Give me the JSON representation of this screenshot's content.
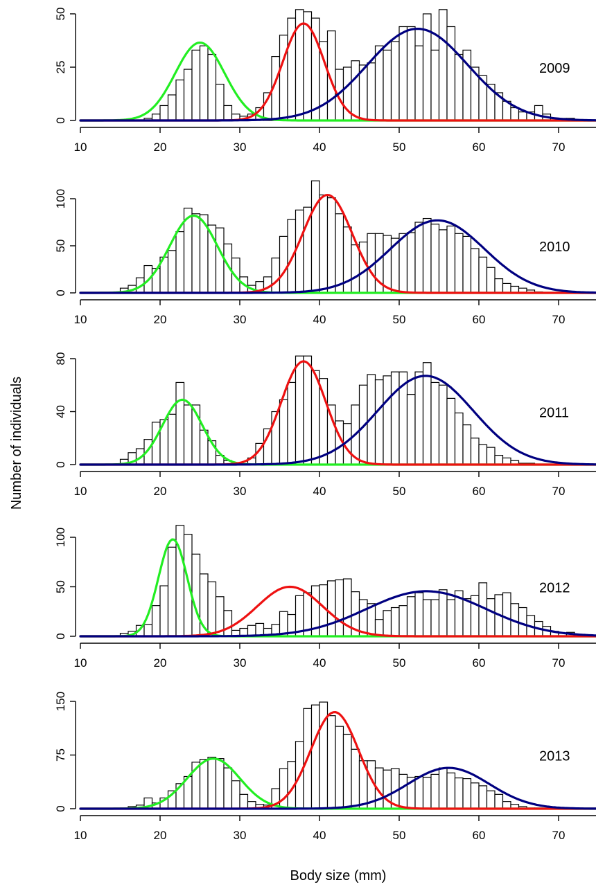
{
  "chart_data": {
    "type": "bar",
    "xlabel": "Body size (mm)",
    "ylabel": "Number of individuals",
    "x_ticks": [
      10,
      20,
      30,
      40,
      50,
      60,
      70
    ],
    "xlim": [
      10,
      75
    ],
    "bin_width": 1,
    "bins_start": 15,
    "colors": {
      "cohort1": "#22ee22",
      "cohort2": "#ee1111",
      "cohort3": "#000080"
    },
    "panels": [
      {
        "label": "2009",
        "ylim": [
          0,
          50
        ],
        "y_ticks": [
          "0",
          "25",
          "50"
        ],
        "counts": [
          0,
          0,
          0,
          1,
          3,
          7,
          12,
          19,
          24,
          33,
          35,
          31,
          17,
          7,
          3,
          2,
          3,
          6,
          13,
          30,
          40,
          48,
          52,
          51,
          48,
          37,
          42,
          24,
          25,
          28,
          26,
          27,
          35,
          33,
          37,
          44,
          44,
          35,
          50,
          33,
          52,
          44,
          31,
          33,
          25,
          21,
          17,
          13,
          9,
          6,
          4,
          4,
          7,
          3,
          1,
          1,
          1,
          0,
          0,
          0
        ],
        "curves": [
          [
            25.0,
            3.1,
            36.5
          ],
          [
            38.0,
            2.6,
            45.5
          ],
          [
            52.3,
            6.3,
            43.0
          ]
        ]
      },
      {
        "label": "2010",
        "ylim": [
          0,
          100
        ],
        "y_ticks": [
          "0",
          "50",
          "100"
        ],
        "counts": [
          5,
          8,
          16,
          29,
          26,
          38,
          45,
          65,
          90,
          84,
          83,
          72,
          69,
          52,
          37,
          17,
          8,
          12,
          17,
          37,
          60,
          78,
          88,
          91,
          119,
          104,
          101,
          84,
          70,
          51,
          54,
          63,
          63,
          61,
          58,
          63,
          64,
          75,
          79,
          73,
          67,
          71,
          63,
          60,
          47,
          38,
          27,
          15,
          10,
          7,
          5,
          3,
          1,
          0,
          0,
          0,
          0,
          0,
          0,
          0
        ],
        "curves": [
          [
            24.2,
            3.0,
            82.0
          ],
          [
            41.0,
            3.1,
            104.0
          ],
          [
            54.8,
            5.9,
            77.0
          ]
        ]
      },
      {
        "label": "2011",
        "ylim": [
          0,
          80
        ],
        "y_ticks": [
          "0",
          "40",
          "80"
        ],
        "counts": [
          4,
          9,
          12,
          19,
          32,
          34,
          38,
          62,
          45,
          45,
          26,
          18,
          7,
          3,
          1,
          0,
          5,
          16,
          27,
          40,
          49,
          62,
          82,
          82,
          71,
          65,
          45,
          33,
          31,
          45,
          60,
          68,
          64,
          67,
          70,
          70,
          53,
          70,
          77,
          62,
          60,
          50,
          39,
          30,
          20,
          15,
          13,
          7,
          5,
          3,
          1,
          1,
          0,
          0,
          0,
          0,
          0,
          0,
          0,
          0
        ],
        "curves": [
          [
            22.8,
            2.5,
            49.0
          ],
          [
            38.0,
            2.8,
            78.0
          ],
          [
            53.3,
            6.0,
            67.0
          ]
        ]
      },
      {
        "label": "2012",
        "ylim": [
          0,
          100
        ],
        "y_ticks": [
          "0",
          "50",
          "100"
        ],
        "counts": [
          3,
          5,
          11,
          12,
          31,
          51,
          90,
          112,
          103,
          83,
          63,
          55,
          40,
          26,
          6,
          8,
          11,
          13,
          8,
          12,
          25,
          22,
          41,
          44,
          51,
          52,
          56,
          57,
          58,
          45,
          37,
          33,
          17,
          26,
          29,
          31,
          40,
          44,
          37,
          37,
          47,
          37,
          46,
          38,
          41,
          54,
          38,
          42,
          44,
          33,
          29,
          21,
          15,
          10,
          5,
          3,
          4,
          1,
          1,
          0
        ],
        "curves": [
          [
            21.6,
            1.8,
            98.0
          ],
          [
            36.3,
            4.1,
            50.0
          ],
          [
            53.4,
            7.5,
            45.5
          ]
        ]
      },
      {
        "label": "2013",
        "ylim": [
          0,
          150
        ],
        "y_ticks": [
          "0",
          "75",
          "150"
        ],
        "counts": [
          1,
          3,
          5,
          15,
          8,
          15,
          25,
          35,
          45,
          65,
          69,
          72,
          70,
          57,
          39,
          20,
          10,
          6,
          5,
          28,
          56,
          66,
          94,
          140,
          145,
          149,
          130,
          115,
          104,
          83,
          67,
          67,
          57,
          54,
          56,
          48,
          44,
          45,
          44,
          48,
          57,
          50,
          43,
          42,
          36,
          32,
          25,
          20,
          10,
          6,
          3,
          1,
          1,
          0,
          0,
          0,
          0,
          0,
          0,
          0
        ],
        "curves": [
          [
            26.7,
            3.3,
            70.0
          ],
          [
            41.9,
            3.0,
            135.0
          ],
          [
            56.2,
            5.1,
            57.0
          ]
        ]
      }
    ]
  }
}
